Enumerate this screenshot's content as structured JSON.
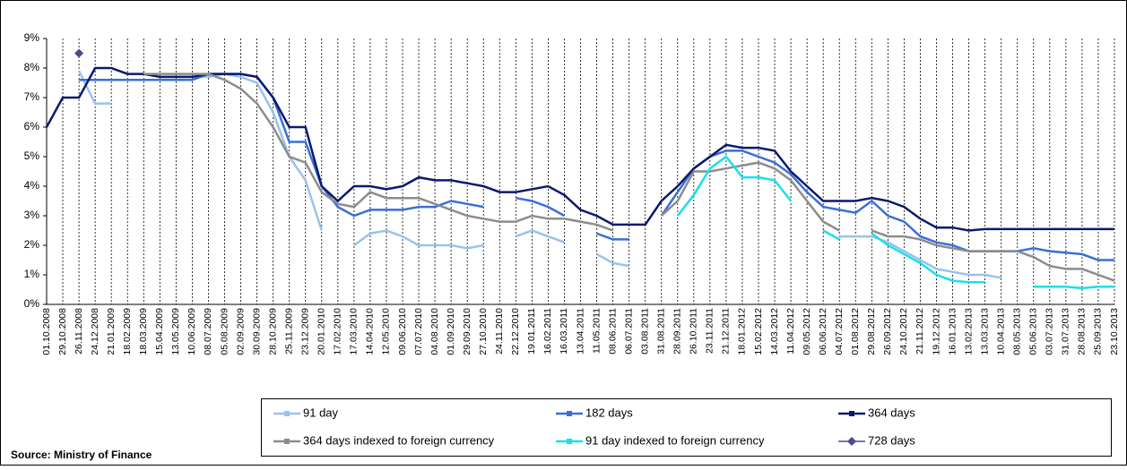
{
  "chart_data": {
    "type": "line",
    "source": "Source: Ministry of Finance",
    "categories": [
      "01.10.2008",
      "29.10.2008",
      "26.11.2008",
      "24.12.2008",
      "21.01.2009",
      "18.02.2009",
      "18.03.2009",
      "15.04.2009",
      "13.05.2009",
      "10.06.2009",
      "08.07.2009",
      "05.08.2009",
      "02.09.2009",
      "30.09.2009",
      "28.10.2009",
      "25.11.2009",
      "23.12.2009",
      "20.01.2010",
      "17.02.2010",
      "17.03.2010",
      "14.04.2010",
      "12.05.2010",
      "09.06.2010",
      "07.07.2010",
      "04.08.2010",
      "01.09.2010",
      "29.09.2010",
      "27.10.2010",
      "24.11.2010",
      "22.12.2010",
      "19.01.2011",
      "16.02.2011",
      "16.03.2011",
      "13.04.2011",
      "11.05.2011",
      "08.06.2011",
      "06.07.2011",
      "03.08.2011",
      "31.08.2011",
      "28.09.2011",
      "26.10.2011",
      "23.11.2011",
      "21.12.2011",
      "18.01.2012",
      "15.02.2012",
      "14.03.2012",
      "11.04.2012",
      "09.05.2012",
      "06.06.2012",
      "04.07.2012",
      "01.08.2012",
      "29.08.2012",
      "26.09.2012",
      "24.10.2012",
      "21.11.2012",
      "19.12.2012",
      "16.01.2013",
      "13.02.2013",
      "13.03.2013",
      "10.04.2013",
      "08.05.2013",
      "05.06.2013",
      "03.07.2013",
      "31.07.2013",
      "28.08.2013",
      "25.09.2013",
      "23.10.2013"
    ],
    "series": [
      {
        "name": "91 day",
        "color": "#99c2ec",
        "values": [
          6,
          null,
          7.9,
          6.8,
          6.8,
          null,
          null,
          7.7,
          7.7,
          7.7,
          7.7,
          7.8,
          7.7,
          7.5,
          6.5,
          5,
          4.2,
          2.5,
          null,
          2,
          2.4,
          2.5,
          2.3,
          2,
          2,
          2,
          1.9,
          2,
          null,
          2.3,
          2.5,
          2.3,
          2.1,
          null,
          1.7,
          1.4,
          1.3,
          null,
          null,
          null,
          null,
          null,
          null,
          null,
          null,
          null,
          null,
          null,
          null,
          2.3,
          2.3,
          2.3,
          2.1,
          1.8,
          1.5,
          1.2,
          1.1,
          1.0,
          1.0,
          0.9,
          null,
          1.0,
          null,
          null,
          null,
          null,
          null
        ]
      },
      {
        "name": "182 days",
        "color": "#3a6fd8",
        "values": [
          null,
          null,
          7.6,
          7.6,
          7.6,
          7.6,
          7.6,
          7.6,
          7.6,
          7.6,
          7.8,
          7.8,
          7.8,
          7.7,
          7,
          5.5,
          5.5,
          4,
          3.3,
          3,
          3.2,
          3.2,
          3.2,
          3.3,
          3.3,
          3.5,
          3.4,
          3.3,
          null,
          3.6,
          3.5,
          3.3,
          3,
          null,
          2.4,
          2.2,
          2.2,
          null,
          3,
          3.8,
          4.6,
          5,
          5.2,
          5.2,
          5,
          4.8,
          4.4,
          3.8,
          3.3,
          3.2,
          3.1,
          3.5,
          3,
          2.8,
          2.3,
          2.1,
          2,
          1.8,
          1.8,
          1.8,
          1.8,
          1.9,
          1.8,
          1.75,
          1.7,
          1.5,
          1.5
        ]
      },
      {
        "name": "364 days",
        "color": "#0a1a6e",
        "values": [
          6,
          7,
          7,
          8,
          8,
          7.8,
          7.8,
          7.7,
          7.7,
          7.7,
          7.8,
          7.8,
          7.8,
          7.7,
          7,
          6,
          6,
          4,
          3.5,
          4,
          4,
          3.9,
          4,
          4.3,
          4.2,
          4.2,
          4.1,
          4,
          3.8,
          3.8,
          3.9,
          4,
          3.7,
          3.2,
          3,
          2.7,
          2.7,
          2.7,
          3.5,
          4,
          4.6,
          5,
          5.4,
          5.3,
          5.3,
          5.2,
          4.5,
          4,
          3.5,
          3.5,
          3.5,
          3.6,
          3.5,
          3.3,
          2.9,
          2.6,
          2.6,
          2.5,
          2.55,
          2.55,
          2.55,
          2.55,
          2.55,
          2.55,
          2.55,
          2.55,
          2.55
        ]
      },
      {
        "name": "364 days indexed to foreign currency",
        "color": "#8c8c8c",
        "values": [
          null,
          null,
          null,
          null,
          null,
          null,
          7.8,
          7.8,
          7.8,
          7.8,
          7.8,
          7.6,
          7.3,
          6.8,
          6,
          5,
          4.8,
          3.8,
          3.4,
          3.3,
          3.8,
          3.6,
          3.6,
          3.6,
          3.4,
          3.2,
          3,
          2.9,
          2.8,
          2.8,
          3,
          2.9,
          2.9,
          2.8,
          2.7,
          2.5,
          null,
          null,
          3.0,
          3.5,
          4.5,
          4.5,
          4.6,
          4.7,
          4.8,
          4.6,
          4.2,
          3.5,
          2.8,
          2.5,
          null,
          2.5,
          2.3,
          2.3,
          2.2,
          2,
          1.9,
          1.8,
          1.8,
          1.8,
          1.8,
          1.6,
          1.3,
          1.2,
          1.2,
          1.0,
          0.8
        ]
      },
      {
        "name": "91 day indexed to foreign currency",
        "color": "#19e0ea",
        "values": [
          null,
          null,
          null,
          null,
          null,
          null,
          null,
          null,
          null,
          null,
          null,
          null,
          null,
          null,
          null,
          null,
          null,
          null,
          null,
          null,
          null,
          null,
          null,
          null,
          null,
          null,
          null,
          null,
          null,
          null,
          null,
          null,
          null,
          null,
          null,
          null,
          null,
          null,
          null,
          3.0,
          3.7,
          4.6,
          5.0,
          4.3,
          4.3,
          4.2,
          3.5,
          null,
          2.5,
          2.2,
          null,
          2.4,
          2.0,
          1.7,
          1.4,
          1.0,
          0.8,
          0.75,
          0.75,
          null,
          null,
          0.6,
          0.6,
          0.6,
          0.55,
          0.6,
          0.6
        ]
      },
      {
        "name": "728 days",
        "color": "#4b4b8f",
        "values": [
          null,
          null,
          8.5,
          null,
          null,
          null,
          null,
          null,
          null,
          null,
          null,
          null,
          null,
          null,
          null,
          null,
          null,
          null,
          null,
          null,
          null,
          null,
          null,
          null,
          null,
          null,
          null,
          null,
          null,
          null,
          null,
          null,
          null,
          null,
          null,
          null,
          null,
          null,
          null,
          null,
          null,
          null,
          null,
          null,
          null,
          null,
          null,
          null,
          null,
          null,
          null,
          null,
          null,
          null,
          null,
          null,
          null,
          null,
          null,
          null,
          null,
          null,
          null,
          null,
          null,
          null,
          null
        ]
      }
    ],
    "ylim": [
      0,
      9
    ],
    "yticks": [
      {
        "value": 0,
        "label": "0%"
      },
      {
        "value": 1,
        "label": "1%"
      },
      {
        "value": 2,
        "label": "2%"
      },
      {
        "value": 3,
        "label": "3%"
      },
      {
        "value": 4,
        "label": "4%"
      },
      {
        "value": 5,
        "label": "5%"
      },
      {
        "value": 6,
        "label": "6%"
      },
      {
        "value": 7,
        "label": "7%"
      },
      {
        "value": 8,
        "label": "8%"
      },
      {
        "value": 9,
        "label": "9%"
      }
    ],
    "grid": true
  }
}
